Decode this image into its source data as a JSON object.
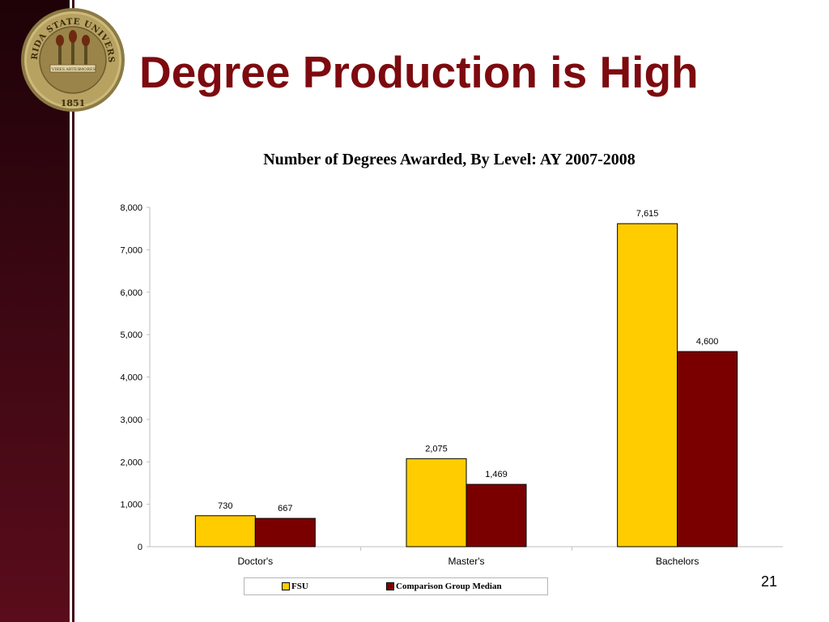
{
  "slide": {
    "title": "Degree Production is High",
    "page_number": "21"
  },
  "seal": {
    "text_top": "FLORIDA STATE UNIVERSITY",
    "ribbons": [
      "VIRES",
      "ARTES",
      "MORES"
    ],
    "year": "1851"
  },
  "colors": {
    "title": "#7d0a0f",
    "fsu": "#ffcc00",
    "comparison": "#7a0000",
    "sidebar": "#3a0712"
  },
  "chart_data": {
    "type": "bar",
    "title": "Number of Degrees Awarded, By Level: AY 2007-2008",
    "categories": [
      "Doctor's",
      "Master's",
      "Bachelors"
    ],
    "series": [
      {
        "name": "FSU",
        "values": [
          730,
          2075,
          7615
        ],
        "labels": [
          "730",
          "2,075",
          "7,615"
        ]
      },
      {
        "name": "Comparison Group Median",
        "values": [
          667,
          1469,
          4600
        ],
        "labels": [
          "667",
          "1,469",
          "4,600"
        ]
      }
    ],
    "yticks": [
      0,
      1000,
      2000,
      3000,
      4000,
      5000,
      6000,
      7000,
      8000
    ],
    "ytick_labels": [
      "0",
      "1,000",
      "2,000",
      "3,000",
      "4,000",
      "5,000",
      "6,000",
      "7,000",
      "8,000"
    ],
    "ylim": [
      0,
      8000
    ],
    "legend": "bottom"
  }
}
